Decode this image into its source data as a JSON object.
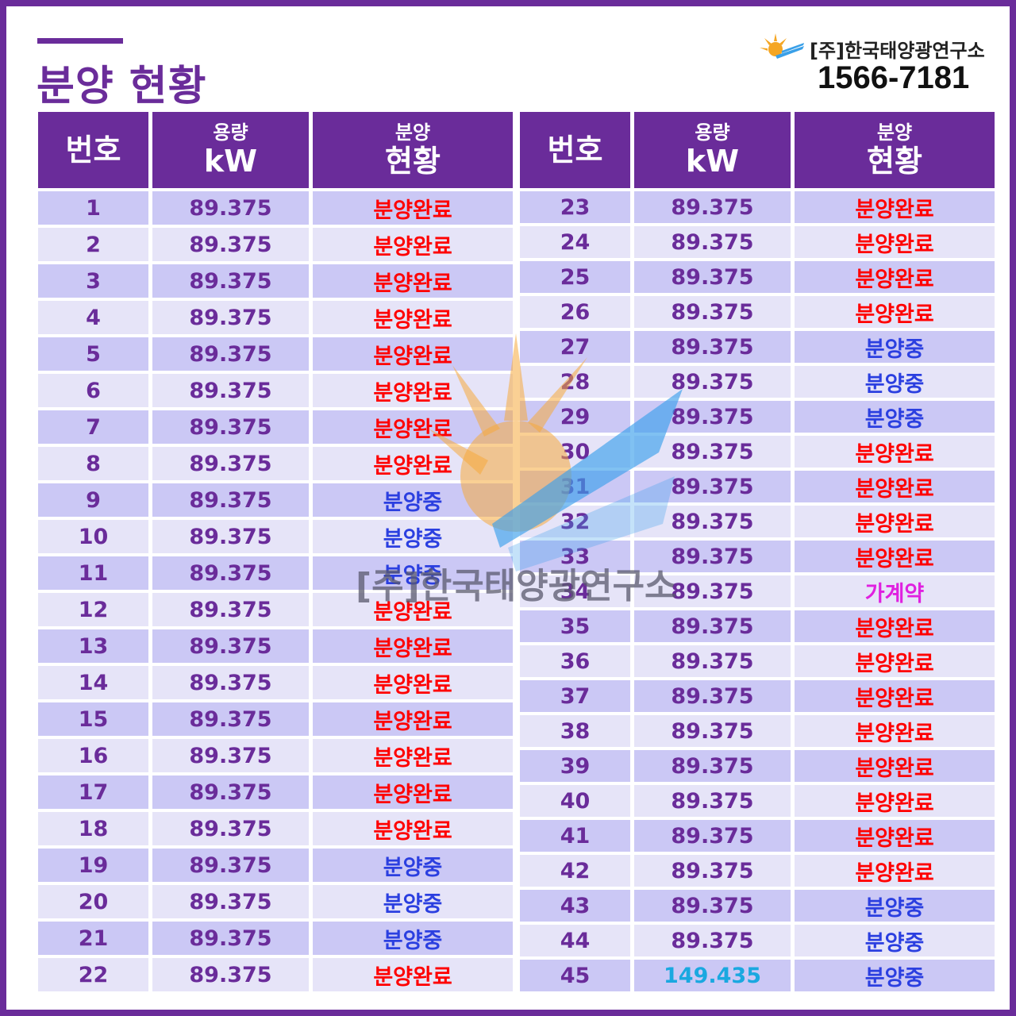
{
  "header": {
    "title": "분양 현황",
    "company": "[주]한국태양광연구소",
    "phone": "1566-7181"
  },
  "table_headers": {
    "number": "번호",
    "capacity_top": "용량",
    "capacity_unit": "kW",
    "status_top": "분양",
    "status_bottom": "현황"
  },
  "colors": {
    "purple": "#6a2c9a",
    "sold": "#ff0000",
    "selling": "#2b3fe0",
    "provisional": "#e020e0",
    "highlight_capacity": "#1aa8e0"
  },
  "watermark": "[주]한국태양광연구소",
  "left_rows": [
    {
      "no": "1",
      "kw": "89.375",
      "status": "분양완료",
      "type": "sold"
    },
    {
      "no": "2",
      "kw": "89.375",
      "status": "분양완료",
      "type": "sold"
    },
    {
      "no": "3",
      "kw": "89.375",
      "status": "분양완료",
      "type": "sold"
    },
    {
      "no": "4",
      "kw": "89.375",
      "status": "분양완료",
      "type": "sold"
    },
    {
      "no": "5",
      "kw": "89.375",
      "status": "분양완료",
      "type": "sold"
    },
    {
      "no": "6",
      "kw": "89.375",
      "status": "분양완료",
      "type": "sold"
    },
    {
      "no": "7",
      "kw": "89.375",
      "status": "분양완료",
      "type": "sold"
    },
    {
      "no": "8",
      "kw": "89.375",
      "status": "분양완료",
      "type": "sold"
    },
    {
      "no": "9",
      "kw": "89.375",
      "status": "분양중",
      "type": "selling"
    },
    {
      "no": "10",
      "kw": "89.375",
      "status": "분양중",
      "type": "selling"
    },
    {
      "no": "11",
      "kw": "89.375",
      "status": "분양중",
      "type": "selling"
    },
    {
      "no": "12",
      "kw": "89.375",
      "status": "분양완료",
      "type": "sold"
    },
    {
      "no": "13",
      "kw": "89.375",
      "status": "분양완료",
      "type": "sold"
    },
    {
      "no": "14",
      "kw": "89.375",
      "status": "분양완료",
      "type": "sold"
    },
    {
      "no": "15",
      "kw": "89.375",
      "status": "분양완료",
      "type": "sold"
    },
    {
      "no": "16",
      "kw": "89.375",
      "status": "분양완료",
      "type": "sold"
    },
    {
      "no": "17",
      "kw": "89.375",
      "status": "분양완료",
      "type": "sold"
    },
    {
      "no": "18",
      "kw": "89.375",
      "status": "분양완료",
      "type": "sold"
    },
    {
      "no": "19",
      "kw": "89.375",
      "status": "분양중",
      "type": "selling"
    },
    {
      "no": "20",
      "kw": "89.375",
      "status": "분양중",
      "type": "selling"
    },
    {
      "no": "21",
      "kw": "89.375",
      "status": "분양중",
      "type": "selling"
    },
    {
      "no": "22",
      "kw": "89.375",
      "status": "분양완료",
      "type": "sold"
    }
  ],
  "right_rows": [
    {
      "no": "23",
      "kw": "89.375",
      "status": "분양완료",
      "type": "sold"
    },
    {
      "no": "24",
      "kw": "89.375",
      "status": "분양완료",
      "type": "sold"
    },
    {
      "no": "25",
      "kw": "89.375",
      "status": "분양완료",
      "type": "sold"
    },
    {
      "no": "26",
      "kw": "89.375",
      "status": "분양완료",
      "type": "sold"
    },
    {
      "no": "27",
      "kw": "89.375",
      "status": "분양중",
      "type": "selling"
    },
    {
      "no": "28",
      "kw": "89.375",
      "status": "분양중",
      "type": "selling"
    },
    {
      "no": "29",
      "kw": "89.375",
      "status": "분양중",
      "type": "selling"
    },
    {
      "no": "30",
      "kw": "89.375",
      "status": "분양완료",
      "type": "sold"
    },
    {
      "no": "31",
      "kw": "89.375",
      "status": "분양완료",
      "type": "sold"
    },
    {
      "no": "32",
      "kw": "89.375",
      "status": "분양완료",
      "type": "sold"
    },
    {
      "no": "33",
      "kw": "89.375",
      "status": "분양완료",
      "type": "sold"
    },
    {
      "no": "34",
      "kw": "89.375",
      "status": "가계약",
      "type": "provisional"
    },
    {
      "no": "35",
      "kw": "89.375",
      "status": "분양완료",
      "type": "sold"
    },
    {
      "no": "36",
      "kw": "89.375",
      "status": "분양완료",
      "type": "sold"
    },
    {
      "no": "37",
      "kw": "89.375",
      "status": "분양완료",
      "type": "sold"
    },
    {
      "no": "38",
      "kw": "89.375",
      "status": "분양완료",
      "type": "sold"
    },
    {
      "no": "39",
      "kw": "89.375",
      "status": "분양완료",
      "type": "sold"
    },
    {
      "no": "40",
      "kw": "89.375",
      "status": "분양완료",
      "type": "sold"
    },
    {
      "no": "41",
      "kw": "89.375",
      "status": "분양완료",
      "type": "sold"
    },
    {
      "no": "42",
      "kw": "89.375",
      "status": "분양완료",
      "type": "sold"
    },
    {
      "no": "43",
      "kw": "89.375",
      "status": "분양중",
      "type": "selling"
    },
    {
      "no": "44",
      "kw": "89.375",
      "status": "분양중",
      "type": "selling"
    },
    {
      "no": "45",
      "kw": "149.435",
      "status": "분양중",
      "type": "selling",
      "kw_highlight": true
    }
  ]
}
